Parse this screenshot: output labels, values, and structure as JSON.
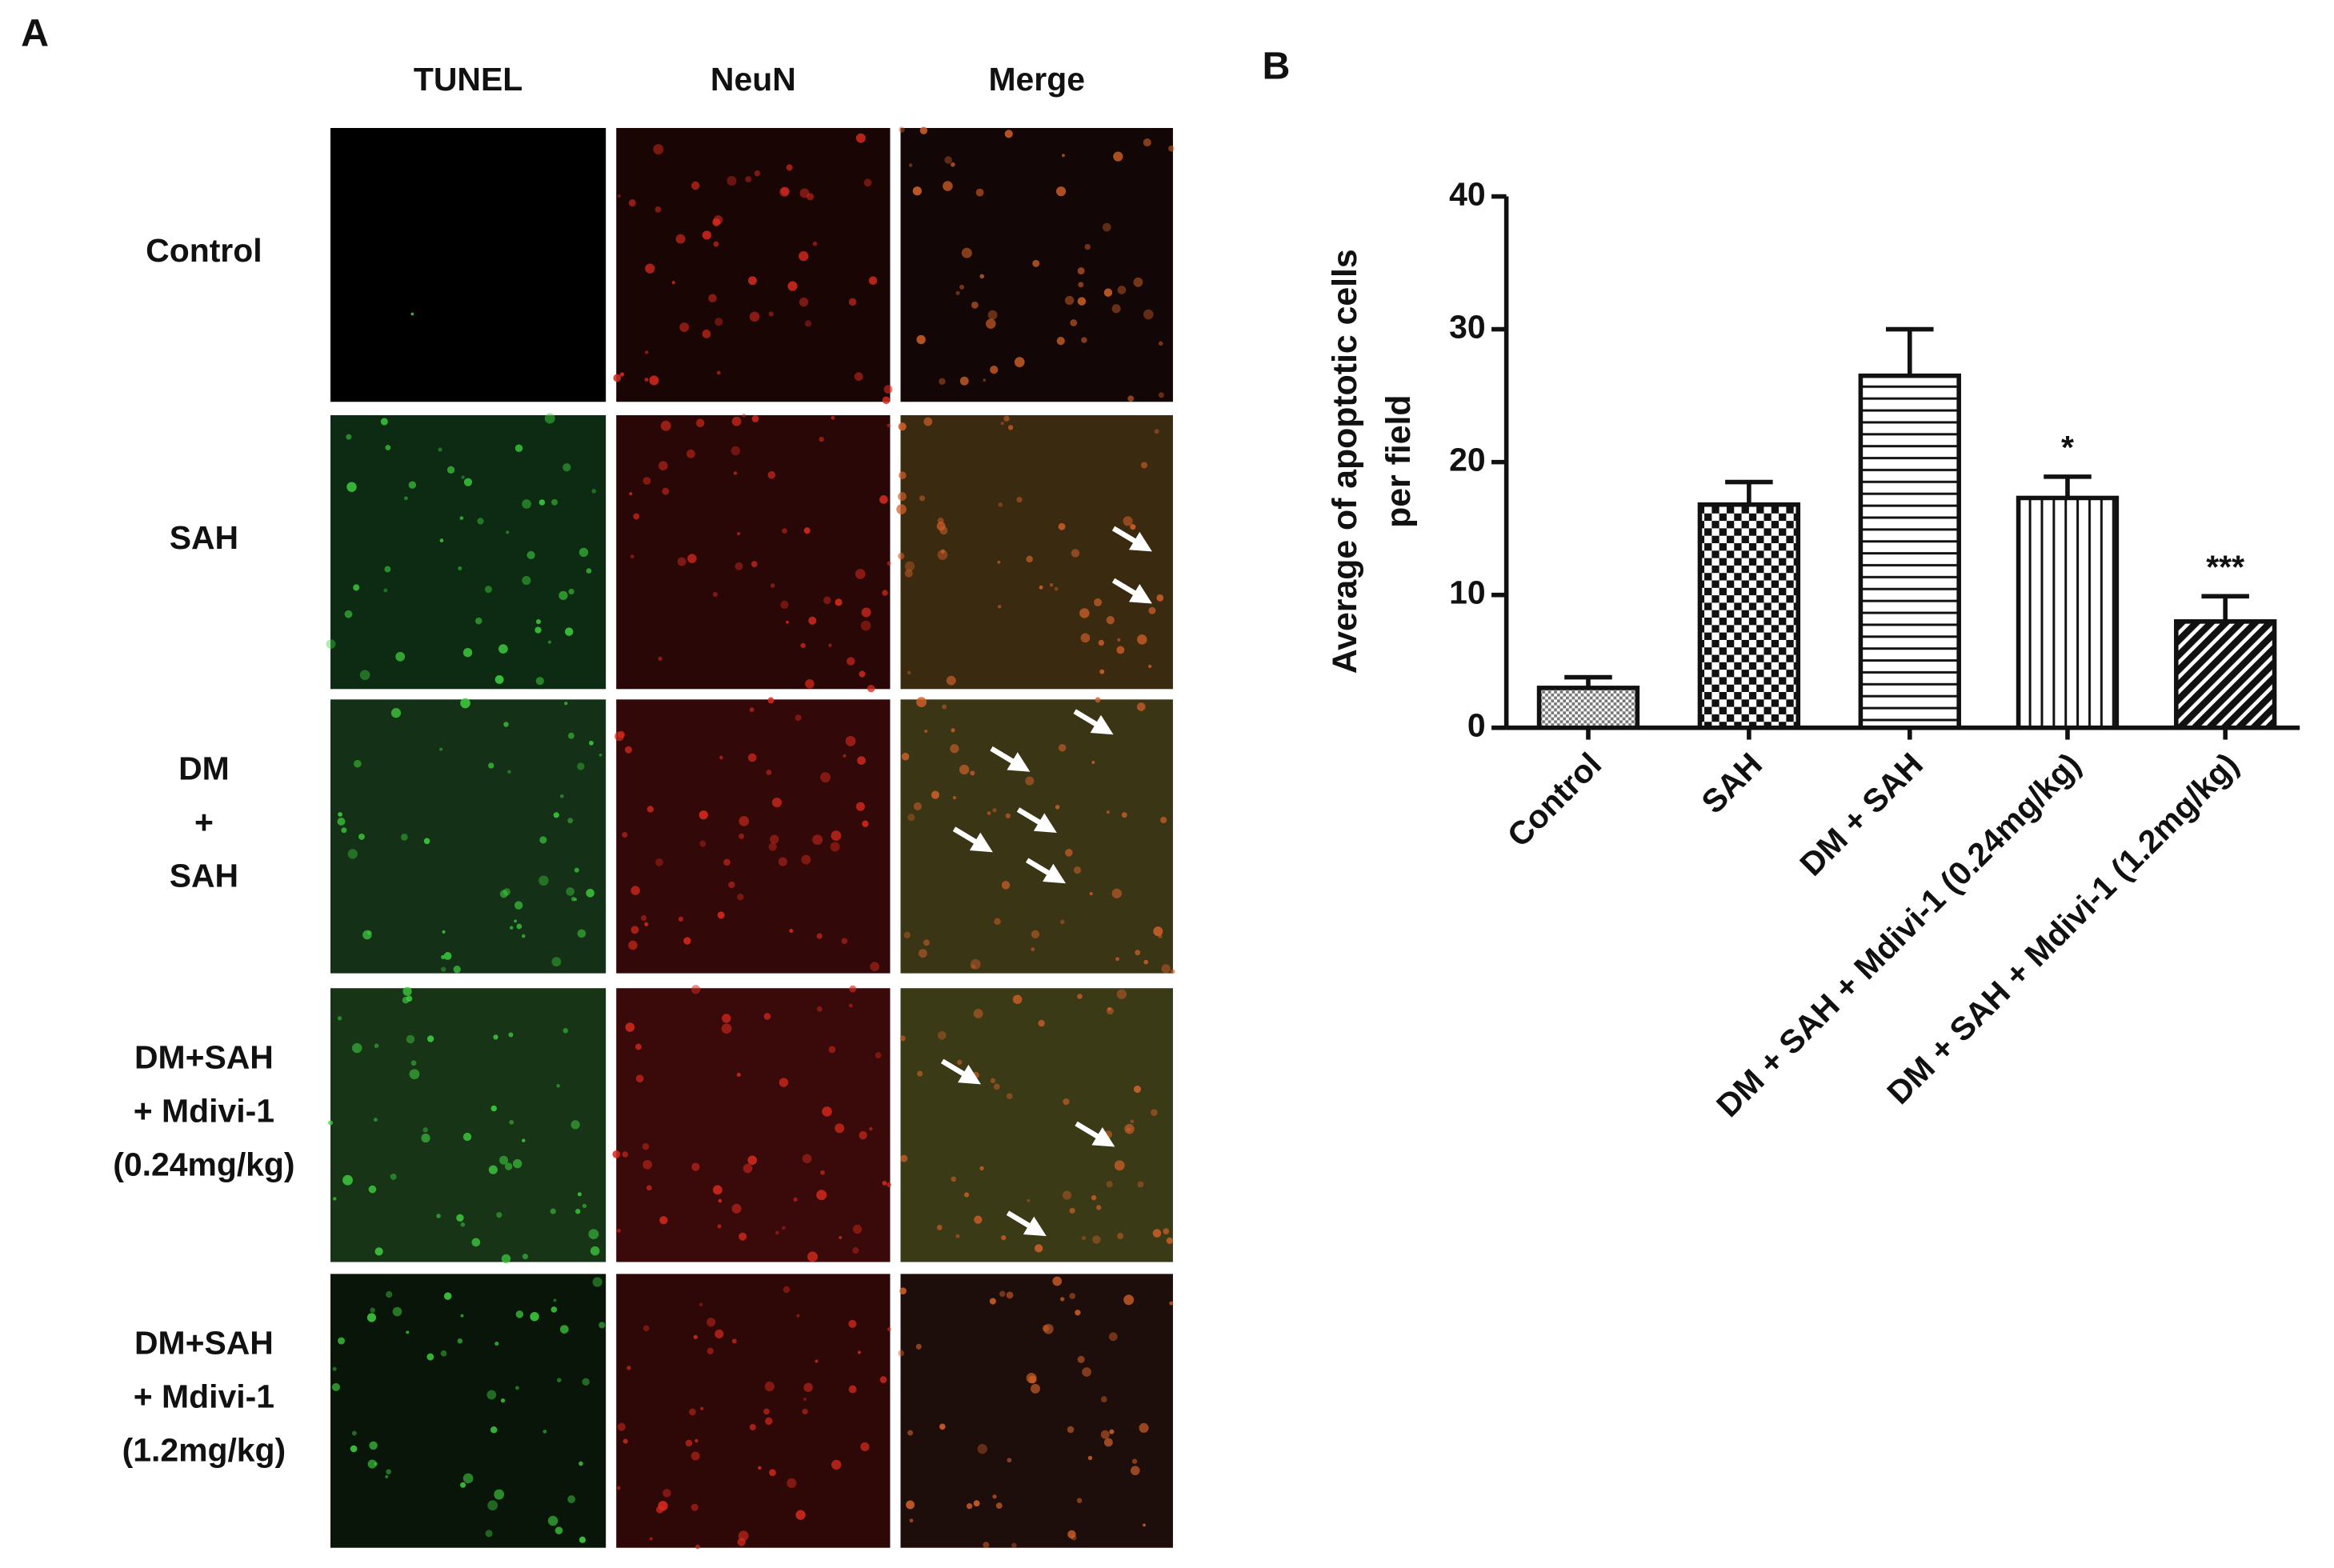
{
  "panel_labels": {
    "a": "A",
    "b": "B"
  },
  "panel_a": {
    "columns": [
      "TUNEL",
      "NeuN",
      "Merge"
    ],
    "rows": [
      [
        "Control"
      ],
      [
        "SAH"
      ],
      [
        "DM",
        "+",
        "SAH"
      ],
      [
        "DM+SAH",
        "+ Mdivi-1",
        "(0.24mg/kg)"
      ],
      [
        "DM+SAH",
        "+ Mdivi-1",
        "(1.2mg/kg)"
      ]
    ]
  },
  "chart_data": {
    "type": "bar",
    "y_label": [
      "Average of apoptotic cells",
      "per field"
    ],
    "categories": [
      "Control",
      "SAH",
      "DM + SAH",
      "DM + SAH + Mdivi-1 (0.24mg/kg)",
      "DM + SAH + Mdivi-1 (1.2mg/kg)"
    ],
    "values": [
      3,
      16.8,
      26.5,
      17.3,
      8
    ],
    "errors": [
      0.8,
      1.7,
      3.5,
      1.6,
      1.9
    ],
    "significance": [
      null,
      null,
      null,
      "*",
      "***"
    ],
    "ylim": [
      0,
      40
    ],
    "yticks": [
      0,
      10,
      20,
      30,
      40
    ]
  }
}
